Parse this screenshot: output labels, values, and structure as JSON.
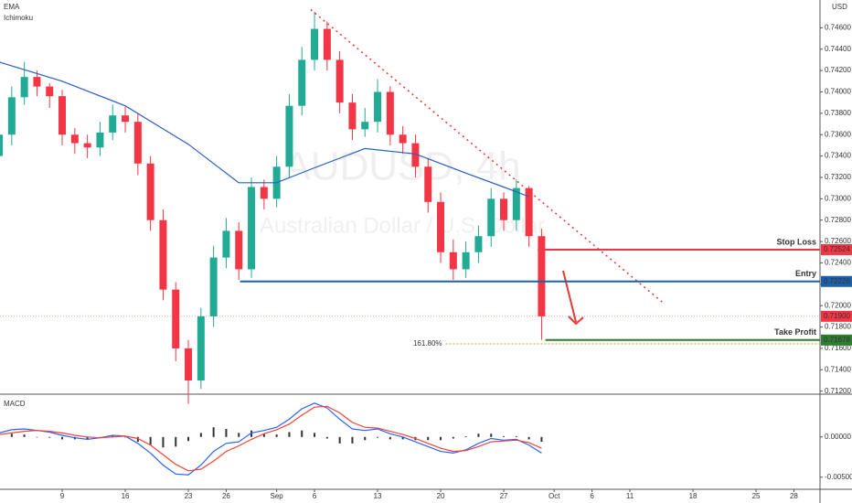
{
  "chart_data": [
    {
      "type": "candlestick",
      "indicators": [
        "EMA",
        "Ichimoku"
      ],
      "currency": "USD",
      "watermark": {
        "symbol": "AUDUSD, 4h",
        "description": "Australian Dollar / U.S. Dollar"
      },
      "up_color": "#22ab94",
      "down_color": "#f23645",
      "xlim": [
        -4.93,
        60.07
      ],
      "xticks": [
        {
          "value": 0,
          "label": "9"
        },
        {
          "value": 5,
          "label": "16"
        },
        {
          "value": 10,
          "label": "23"
        },
        {
          "value": 13,
          "label": "26"
        },
        {
          "value": 17,
          "label": "Sep"
        },
        {
          "value": 20,
          "label": "6"
        },
        {
          "value": 25,
          "label": "13"
        },
        {
          "value": 30,
          "label": "20"
        },
        {
          "value": 35,
          "label": "27"
        },
        {
          "value": 39,
          "label": "Oct"
        },
        {
          "value": 42,
          "label": "6"
        },
        {
          "value": 45,
          "label": "11"
        },
        {
          "value": 50,
          "label": "18"
        },
        {
          "value": 55,
          "label": "25"
        },
        {
          "value": 58,
          "label": "28"
        }
      ],
      "ylim": [
        0.7118,
        0.7486
      ],
      "yticks": [
        {
          "value": 0.712,
          "label": "0.71200"
        },
        {
          "value": 0.714,
          "label": "0.71400"
        },
        {
          "value": 0.716,
          "label": "0.71600"
        },
        {
          "value": 0.718,
          "label": "0.71800"
        },
        {
          "value": 0.72,
          "label": "0.72000"
        },
        {
          "value": 0.722,
          "label": "0.72200"
        },
        {
          "value": 0.724,
          "label": "0.72400"
        },
        {
          "value": 0.726,
          "label": "0.72600"
        },
        {
          "value": 0.728,
          "label": "0.72800"
        },
        {
          "value": 0.73,
          "label": "0.73000"
        },
        {
          "value": 0.732,
          "label": "0.73200"
        },
        {
          "value": 0.734,
          "label": "0.73400"
        },
        {
          "value": 0.736,
          "label": "0.73600"
        },
        {
          "value": 0.738,
          "label": "0.73800"
        },
        {
          "value": 0.74,
          "label": "0.74000"
        },
        {
          "value": 0.742,
          "label": "0.74200"
        },
        {
          "value": 0.744,
          "label": "0.74400"
        },
        {
          "value": 0.746,
          "label": "0.74600"
        }
      ],
      "x": [
        -5,
        -4,
        -3,
        -2,
        -1,
        0,
        1,
        2,
        3,
        4,
        5,
        6,
        7,
        8,
        9,
        10,
        11,
        12,
        13,
        14,
        15,
        16,
        17,
        18,
        19,
        20,
        21,
        22,
        23,
        24,
        25,
        26,
        27,
        28,
        29,
        30,
        31,
        32,
        33,
        34,
        35,
        36,
        37,
        38
      ],
      "open": [
        0.734,
        0.736,
        0.7395,
        0.7414,
        0.7405,
        0.7396,
        0.736,
        0.7352,
        0.7348,
        0.7362,
        0.7378,
        0.7372,
        0.7333,
        0.728,
        0.7215,
        0.716,
        0.713,
        0.719,
        0.7245,
        0.727,
        0.7234,
        0.7311,
        0.73,
        0.733,
        0.7387,
        0.743,
        0.7459,
        0.743,
        0.739,
        0.7365,
        0.7372,
        0.74,
        0.736,
        0.7352,
        0.733,
        0.7297,
        0.725,
        0.7234,
        0.725,
        0.7265,
        0.73,
        0.728,
        0.731,
        0.7265
      ],
      "high": [
        0.7372,
        0.7405,
        0.7428,
        0.742,
        0.7408,
        0.7402,
        0.7366,
        0.736,
        0.7372,
        0.7388,
        0.7386,
        0.738,
        0.734,
        0.729,
        0.7222,
        0.7168,
        0.7198,
        0.7256,
        0.7282,
        0.7278,
        0.732,
        0.7318,
        0.734,
        0.7398,
        0.7442,
        0.7475,
        0.7466,
        0.7438,
        0.7398,
        0.7385,
        0.7412,
        0.7405,
        0.7368,
        0.736,
        0.7338,
        0.7306,
        0.7262,
        0.726,
        0.7275,
        0.731,
        0.7306,
        0.7318,
        0.7312,
        0.7272
      ],
      "low": [
        0.733,
        0.735,
        0.7388,
        0.7396,
        0.7385,
        0.735,
        0.7342,
        0.7338,
        0.734,
        0.7355,
        0.7362,
        0.7322,
        0.727,
        0.7205,
        0.7148,
        0.7108,
        0.7122,
        0.718,
        0.7235,
        0.7224,
        0.7226,
        0.729,
        0.7292,
        0.732,
        0.7378,
        0.742,
        0.742,
        0.738,
        0.7355,
        0.7358,
        0.7362,
        0.735,
        0.7342,
        0.732,
        0.7287,
        0.724,
        0.7224,
        0.7226,
        0.724,
        0.7255,
        0.727,
        0.727,
        0.7255,
        0.7168
      ],
      "close": [
        0.736,
        0.7395,
        0.7414,
        0.7405,
        0.7396,
        0.736,
        0.7352,
        0.7348,
        0.7362,
        0.7378,
        0.7372,
        0.7333,
        0.728,
        0.7215,
        0.716,
        0.713,
        0.719,
        0.7245,
        0.727,
        0.7234,
        0.7311,
        0.73,
        0.733,
        0.7387,
        0.743,
        0.7459,
        0.743,
        0.739,
        0.7365,
        0.7372,
        0.74,
        0.736,
        0.7352,
        0.733,
        0.7297,
        0.725,
        0.7234,
        0.725,
        0.7265,
        0.73,
        0.728,
        0.731,
        0.7265,
        0.719
      ],
      "ema": {
        "color": "#2a5fc4",
        "x": [
          -5,
          0,
          5,
          10,
          14,
          17,
          20,
          24,
          28,
          32,
          35,
          37
        ],
        "values": [
          0.7428,
          0.741,
          0.7387,
          0.7351,
          0.7315,
          0.7315,
          0.7329,
          0.7347,
          0.7342,
          0.7324,
          0.7311,
          0.7302
        ]
      },
      "trendline": {
        "color": "#e53935",
        "x": [
          19.7,
          47.7
        ],
        "values": [
          0.7477,
          0.7202
        ]
      },
      "levels": [
        {
          "text": "Stop Loss",
          "value": 0.72524,
          "label": "0.72524",
          "x_start": 37.7,
          "color": "#f23645"
        },
        {
          "text": "Entry",
          "value": 0.72226,
          "label": "0.72226",
          "x_start": 14.1,
          "color": "#1e5fa8"
        },
        {
          "text": "Take Profit",
          "value": 0.71678,
          "label": "0.71678",
          "x_start": 38.3,
          "color": "#2e7d32"
        }
      ],
      "last_price": {
        "value": 0.719,
        "label": "0.71900",
        "color": "#f23645"
      },
      "fib": {
        "label": "161.80%",
        "value": 0.71642,
        "x_start": 30.4,
        "color": "#d4a017"
      }
    },
    {
      "type": "macd",
      "title": "MACD",
      "xlim": [
        -4.93,
        60.07
      ],
      "ylim": [
        -0.0065,
        0.0052
      ],
      "yticks": [
        {
          "value": 0,
          "label": "0.00000"
        },
        {
          "value": -0.005,
          "label": "-0.00500"
        }
      ],
      "x": [
        -5,
        -4,
        -3,
        -2,
        -1,
        0,
        1,
        2,
        3,
        4,
        5,
        6,
        7,
        8,
        9,
        10,
        11,
        12,
        13,
        14,
        15,
        16,
        17,
        18,
        19,
        20,
        21,
        22,
        23,
        24,
        25,
        26,
        27,
        28,
        29,
        30,
        31,
        32,
        33,
        34,
        35,
        36,
        37,
        38
      ],
      "series": [
        {
          "style": "bar",
          "color": "#333333",
          "values": [
            0.0002,
            0.0004,
            0.0003,
            0,
            -0.0001,
            -0.0003,
            -0.0003,
            -0.0003,
            0,
            0.0002,
            0,
            -0.0006,
            -0.001,
            -0.0013,
            -0.0012,
            -0.0005,
            0.0005,
            0.0012,
            0.001,
            0.0005,
            0.0008,
            0.0004,
            0.0003,
            0.0006,
            0.0008,
            0.0005,
            -0.0002,
            -0.0008,
            -0.0008,
            -0.0004,
            -0.0001,
            -0.0003,
            -0.0003,
            -0.0004,
            -0.0004,
            -0.0004,
            -0.0002,
            0.0001,
            0.0004,
            0.0004,
            0.0001,
            0.0001,
            -0.0003,
            -0.0006
          ]
        },
        {
          "style": "line",
          "color": "#2962ff",
          "values": [
            0.0005,
            0.0009,
            0.001,
            0.0008,
            0.0006,
            0.0002,
            -0.0001,
            -0.0003,
            -0.0001,
            0.0002,
            0.0001,
            -0.0008,
            -0.002,
            -0.0035,
            -0.0046,
            -0.0047,
            -0.0035,
            -0.0018,
            -0.0008,
            -0.0006,
            0.0005,
            0.0008,
            0.0012,
            0.0022,
            0.0035,
            0.0042,
            0.0036,
            0.0022,
            0.001,
            0.0008,
            0.001,
            0.0004,
            0,
            -0.0006,
            -0.0012,
            -0.0018,
            -0.002,
            -0.0016,
            -0.0008,
            -0.0002,
            -0.0004,
            -0.0003,
            -0.001,
            -0.002
          ]
        },
        {
          "style": "line",
          "color": "#f44336",
          "values": [
            0.0003,
            0.0005,
            0.0007,
            0.0008,
            0.0007,
            0.0005,
            0.0002,
            0,
            -0.0001,
            0,
            0.0001,
            -0.0002,
            -0.001,
            -0.0022,
            -0.0034,
            -0.0042,
            -0.004,
            -0.003,
            -0.0018,
            -0.0011,
            -0.0003,
            0.0004,
            0.0009,
            0.0016,
            0.0027,
            0.0037,
            0.0038,
            0.003,
            0.0018,
            0.0012,
            0.0011,
            0.0007,
            0.0003,
            -0.0002,
            -0.0008,
            -0.0014,
            -0.0018,
            -0.0017,
            -0.0012,
            -0.0006,
            -0.0005,
            -0.0004,
            -0.0007,
            -0.0014
          ]
        }
      ]
    }
  ]
}
